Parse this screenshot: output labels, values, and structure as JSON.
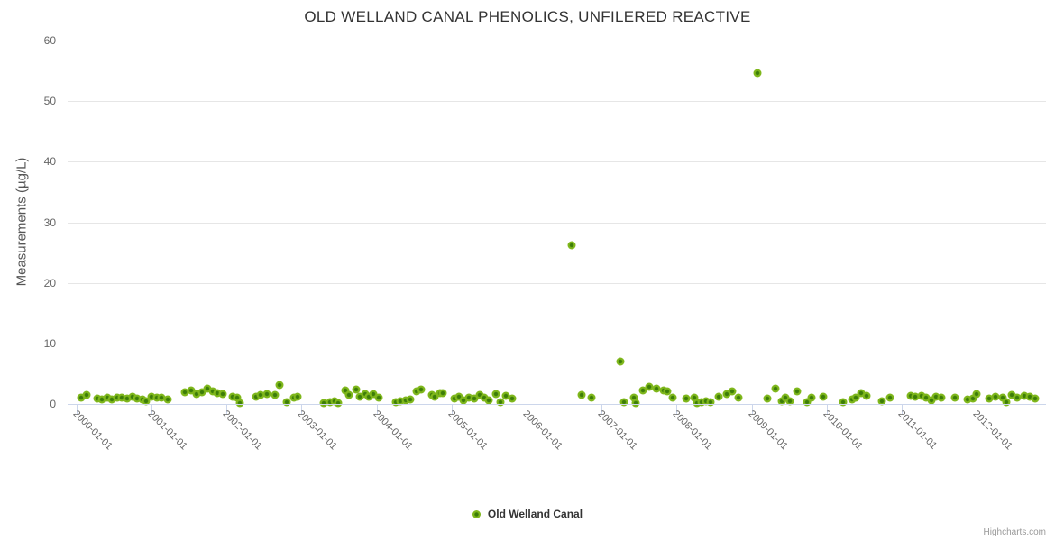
{
  "chart": {
    "title": "OLD WELLAND CANAL PHENOLICS, UNFILERED REACTIVE",
    "credits_label": "Highcharts.com"
  },
  "legend": {
    "series_label": "Old Welland Canal"
  },
  "colors": {
    "marker_outer": "#7fb71c",
    "marker_inner": "#3c7d08",
    "grid": "#e6e6e6",
    "axis": "#ccd6eb",
    "label": "#666666",
    "title": "#333333",
    "credits": "#999999"
  },
  "chart_data": {
    "type": "scatter",
    "title": "OLD WELLAND CANAL PHENOLICS, UNFILERED REACTIVE",
    "xlabel": "",
    "ylabel": "Measurements (µg/L)",
    "series_name": "Old Welland Canal",
    "legend_position": "bottom-center",
    "grid": "horizontal-only",
    "yticks": [
      0,
      10,
      20,
      30,
      40,
      50,
      60
    ],
    "ylim": [
      0,
      60
    ],
    "xticks": [
      "2000-01-01",
      "2001-01-01",
      "2002-01-01",
      "2003-01-01",
      "2004-01-01",
      "2005-01-01",
      "2006-01-01",
      "2007-01-01",
      "2008-01-01",
      "2009-01-01",
      "2010-01-01",
      "2011-01-01",
      "2012-01-01"
    ],
    "xlim_decimal_years": [
      1999.885,
      2012.92
    ],
    "points": [
      [
        "2000-01-26",
        1.1
      ],
      [
        "2000-02-22",
        1.5
      ],
      [
        "2000-04-14",
        0.9
      ],
      [
        "2000-05-06",
        0.7
      ],
      [
        "2000-05-30",
        1.0
      ],
      [
        "2000-06-21",
        0.7
      ],
      [
        "2000-07-17",
        1.05
      ],
      [
        "2000-08-08",
        1.05
      ],
      [
        "2000-09-03",
        0.95
      ],
      [
        "2000-10-01",
        1.25
      ],
      [
        "2000-10-23",
        0.9
      ],
      [
        "2000-11-17",
        0.75
      ],
      [
        "2000-12-06",
        0.4
      ],
      [
        "2001-01-02",
        1.25
      ],
      [
        "2001-01-27",
        1.0
      ],
      [
        "2001-02-21",
        1.05
      ],
      [
        "2001-03-19",
        0.75
      ],
      [
        "2001-06-14",
        1.9
      ],
      [
        "2001-07-12",
        2.2
      ],
      [
        "2001-08-10",
        1.6
      ],
      [
        "2001-09-05",
        2.0
      ],
      [
        "2001-10-02",
        2.5
      ],
      [
        "2001-10-28",
        2.1
      ],
      [
        "2001-11-19",
        1.8
      ],
      [
        "2001-12-15",
        1.6
      ],
      [
        "2002-02-01",
        1.2
      ],
      [
        "2002-02-21",
        1.0
      ],
      [
        "2002-03-04",
        0.15
      ],
      [
        "2002-05-23",
        1.2
      ],
      [
        "2002-06-14",
        1.5
      ],
      [
        "2002-07-16",
        1.7
      ],
      [
        "2002-08-23",
        1.5
      ],
      [
        "2002-09-14",
        3.1
      ],
      [
        "2002-10-23",
        0.35
      ],
      [
        "2002-11-26",
        1.0
      ],
      [
        "2002-12-13",
        1.2
      ],
      [
        "2003-04-18",
        0.15
      ],
      [
        "2003-05-17",
        0.35
      ],
      [
        "2003-06-08",
        0.4
      ],
      [
        "2003-06-27",
        0.15
      ],
      [
        "2003-08-03",
        2.2
      ],
      [
        "2003-08-20",
        1.5
      ],
      [
        "2003-09-22",
        2.4
      ],
      [
        "2003-10-13",
        1.2
      ],
      [
        "2003-11-05",
        1.7
      ],
      [
        "2003-11-26",
        1.2
      ],
      [
        "2003-12-14",
        1.6
      ],
      [
        "2004-01-13",
        1.0
      ],
      [
        "2004-04-04",
        0.35
      ],
      [
        "2004-04-26",
        0.5
      ],
      [
        "2004-05-20",
        0.6
      ],
      [
        "2004-06-13",
        0.75
      ],
      [
        "2004-07-15",
        2.1
      ],
      [
        "2004-08-06",
        2.4
      ],
      [
        "2004-09-26",
        1.5
      ],
      [
        "2004-10-11",
        1.2
      ],
      [
        "2004-11-06",
        1.75
      ],
      [
        "2004-11-21",
        1.85
      ],
      [
        "2005-01-14",
        0.85
      ],
      [
        "2005-02-05",
        1.15
      ],
      [
        "2005-02-27",
        0.65
      ],
      [
        "2005-03-25",
        1.0
      ],
      [
        "2005-04-22",
        0.85
      ],
      [
        "2005-05-15",
        1.5
      ],
      [
        "2005-06-10",
        1.0
      ],
      [
        "2005-07-01",
        0.65
      ],
      [
        "2005-08-02",
        1.6
      ],
      [
        "2005-08-28",
        0.35
      ],
      [
        "2005-09-24",
        1.4
      ],
      [
        "2005-10-23",
        0.85
      ],
      [
        "2006-08-06",
        26.2
      ],
      [
        "2006-09-23",
        1.5
      ],
      [
        "2006-11-13",
        1.0
      ],
      [
        "2007-04-01",
        7.0
      ],
      [
        "2007-04-17",
        0.35
      ],
      [
        "2007-06-06",
        1.0
      ],
      [
        "2007-06-15",
        0.15
      ],
      [
        "2007-07-17",
        2.2
      ],
      [
        "2007-08-19",
        2.9
      ],
      [
        "2007-09-25",
        2.6
      ],
      [
        "2007-10-27",
        2.3
      ],
      [
        "2007-11-14",
        2.1
      ],
      [
        "2007-12-10",
        1.1
      ],
      [
        "2008-02-18",
        0.85
      ],
      [
        "2008-03-24",
        1.0
      ],
      [
        "2008-04-08",
        0.1
      ],
      [
        "2008-05-01",
        0.35
      ],
      [
        "2008-05-23",
        0.5
      ],
      [
        "2008-06-14",
        0.35
      ],
      [
        "2008-07-23",
        1.2
      ],
      [
        "2008-09-01",
        1.6
      ],
      [
        "2008-09-28",
        2.1
      ],
      [
        "2008-10-29",
        1.0
      ],
      [
        "2009-01-27",
        54.7
      ],
      [
        "2009-03-14",
        0.85
      ],
      [
        "2009-04-27",
        2.5
      ],
      [
        "2009-05-26",
        0.5
      ],
      [
        "2009-06-14",
        1.1
      ],
      [
        "2009-07-02",
        0.5
      ],
      [
        "2009-08-08",
        2.1
      ],
      [
        "2009-09-25",
        0.35
      ],
      [
        "2009-10-20",
        1.1
      ],
      [
        "2009-12-13",
        1.2
      ],
      [
        "2010-03-19",
        0.25
      ],
      [
        "2010-05-02",
        0.75
      ],
      [
        "2010-05-22",
        1.1
      ],
      [
        "2010-06-15",
        1.75
      ],
      [
        "2010-07-10",
        1.35
      ],
      [
        "2010-09-25",
        0.5
      ],
      [
        "2010-11-03",
        1.0
      ],
      [
        "2011-02-14",
        1.4
      ],
      [
        "2011-03-05",
        1.15
      ],
      [
        "2011-04-07",
        1.35
      ],
      [
        "2011-04-28",
        1.0
      ],
      [
        "2011-05-23",
        0.65
      ],
      [
        "2011-06-16",
        1.2
      ],
      [
        "2011-07-10",
        1.1
      ],
      [
        "2011-09-14",
        1.0
      ],
      [
        "2011-11-18",
        0.75
      ],
      [
        "2011-12-10",
        0.85
      ],
      [
        "2011-12-28",
        1.6
      ],
      [
        "2012-03-01",
        0.85
      ],
      [
        "2012-03-30",
        1.2
      ],
      [
        "2012-05-03",
        1.1
      ],
      [
        "2012-05-20",
        0.25
      ],
      [
        "2012-06-19",
        1.5
      ],
      [
        "2012-07-15",
        1.0
      ],
      [
        "2012-08-19",
        1.35
      ],
      [
        "2012-09-14",
        1.2
      ],
      [
        "2012-10-10",
        0.85
      ]
    ]
  }
}
